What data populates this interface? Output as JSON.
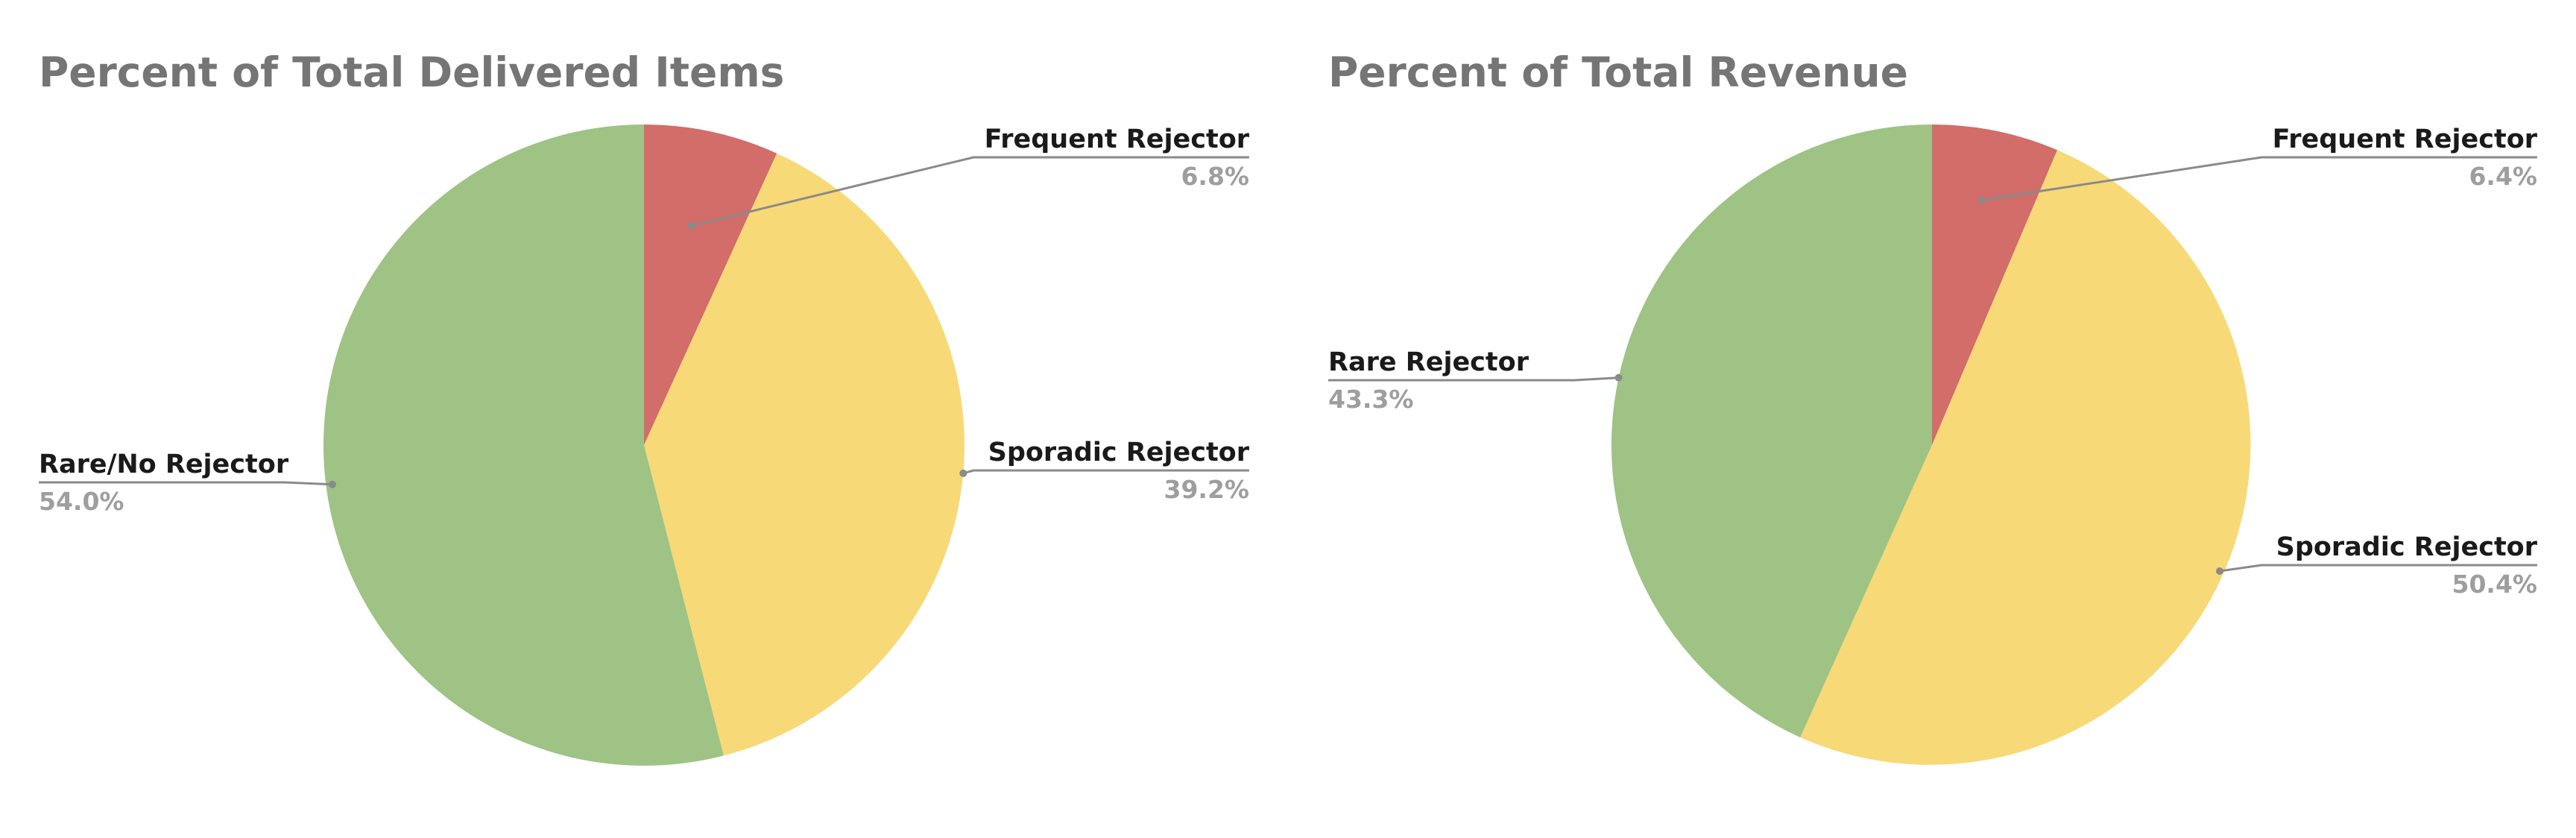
{
  "chart_data": [
    {
      "type": "pie",
      "title": "Percent of Total Delivered Items",
      "slices": [
        {
          "label": "Frequent Rejector",
          "value": 6.8,
          "value_label": "6.8%",
          "color": "#d26d6a"
        },
        {
          "label": "Sporadic Rejector",
          "value": 39.2,
          "value_label": "39.2%",
          "color": "#f7d977"
        },
        {
          "label": "Rare/No Rejector",
          "value": 54.0,
          "value_label": "54.0%",
          "color": "#9ec384"
        }
      ]
    },
    {
      "type": "pie",
      "title": "Percent of Total Revenue",
      "slices": [
        {
          "label": "Frequent Rejector",
          "value": 6.4,
          "value_label": "6.4%",
          "color": "#d26d6a"
        },
        {
          "label": "Sporadic Rejector",
          "value": 50.4,
          "value_label": "50.4%",
          "color": "#f7d977"
        },
        {
          "label": "Rare Rejector",
          "value": 43.3,
          "value_label": "43.3%",
          "color": "#9ec384"
        }
      ]
    }
  ]
}
